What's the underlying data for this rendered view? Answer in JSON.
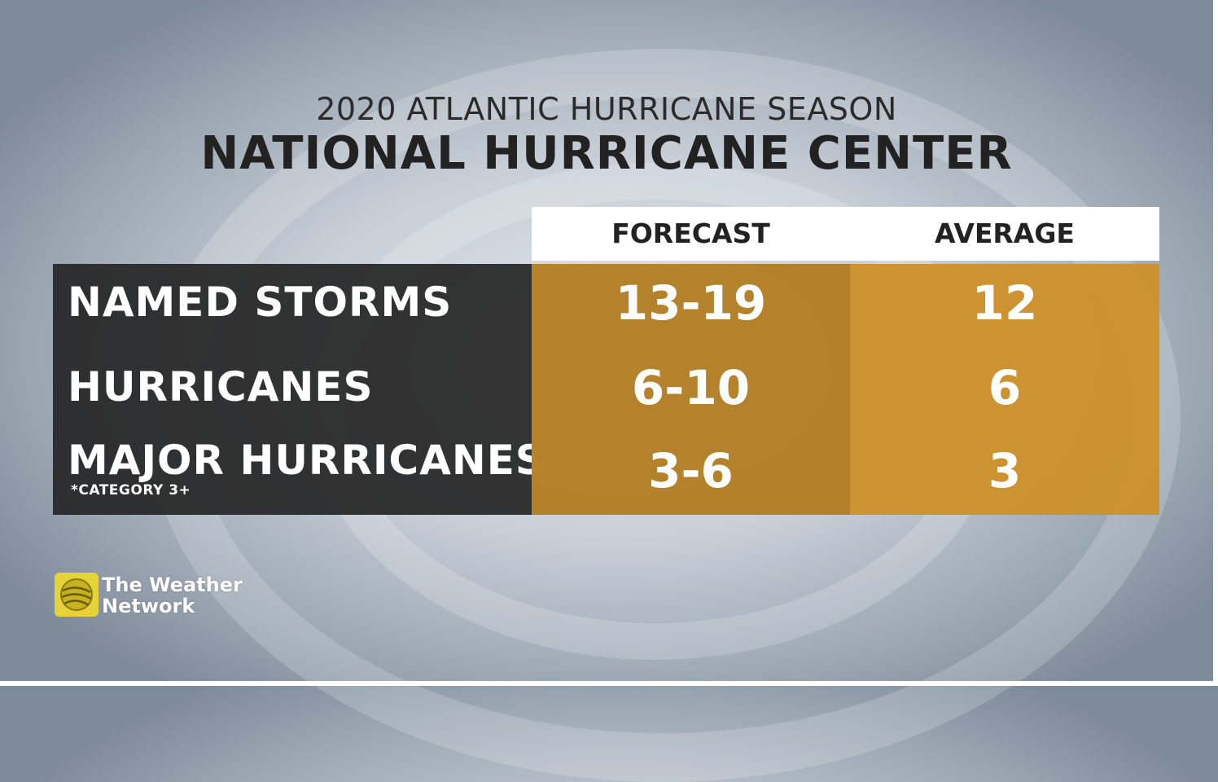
{
  "header": {
    "subtitle": "2020 ATLANTIC HURRICANE SEASON",
    "title": "NATIONAL HURRICANE CENTER"
  },
  "table": {
    "columns": [
      "FORECAST",
      "AVERAGE"
    ],
    "rows": [
      {
        "label": "NAMED STORMS",
        "note": "",
        "forecast": "13-19",
        "average": "12"
      },
      {
        "label": "HURRICANES",
        "note": "",
        "forecast": "6-10",
        "average": "6"
      },
      {
        "label": "MAJOR HURRICANES",
        "note": "*CATEGORY 3+",
        "forecast": "3-6",
        "average": "3"
      }
    ]
  },
  "logo": {
    "line1": "The Weather",
    "line2": "Network",
    "icon": "globe-swirl-icon"
  },
  "colors": {
    "label_bg": "#262626",
    "forecast_bg": "#b07b1c",
    "average_bg": "#cd9028",
    "logo_yellow": "#e6d33a"
  }
}
